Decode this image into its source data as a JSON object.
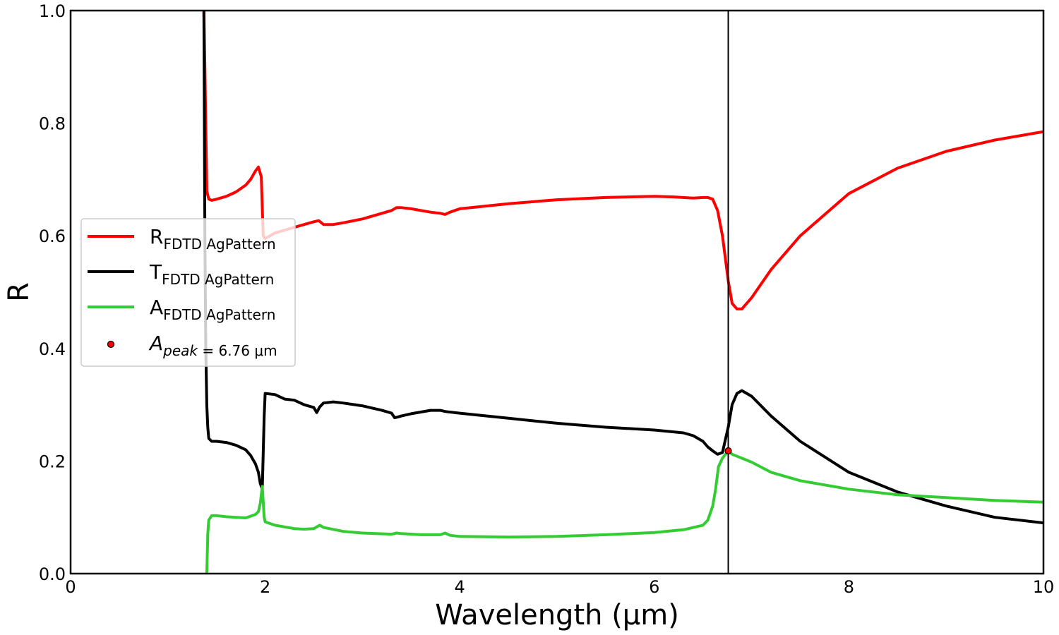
{
  "chart_data": {
    "type": "line",
    "xlabel": "Wavelength (μm)",
    "ylabel": "R",
    "xlim": [
      0,
      10
    ],
    "ylim": [
      0,
      1
    ],
    "xticks": [
      "0",
      "2",
      "4",
      "6",
      "8",
      "10"
    ],
    "yticks": [
      "0.0",
      "0.2",
      "0.4",
      "0.6",
      "0.8",
      "1.0"
    ],
    "grid": false,
    "legend_position": "center-left",
    "vline_x": 6.76,
    "peak_point": {
      "x": 6.76,
      "y": 0.218
    },
    "series": [
      {
        "name": "R",
        "sub": "FDTD AgPattern",
        "color": "#ff0000",
        "x": [
          1.37,
          1.38,
          1.4,
          1.42,
          1.45,
          1.5,
          1.6,
          1.7,
          1.8,
          1.85,
          1.9,
          1.93,
          1.96,
          1.98,
          2.0,
          2.05,
          2.1,
          2.2,
          2.3,
          2.4,
          2.5,
          2.55,
          2.6,
          2.7,
          2.8,
          3.0,
          3.2,
          3.3,
          3.35,
          3.4,
          3.5,
          3.6,
          3.7,
          3.8,
          3.85,
          3.9,
          4.0,
          4.5,
          5.0,
          5.5,
          6.0,
          6.2,
          6.4,
          6.5,
          6.55,
          6.6,
          6.65,
          6.7,
          6.76,
          6.8,
          6.85,
          6.9,
          7.0,
          7.2,
          7.5,
          8.0,
          8.5,
          9.0,
          9.5,
          10.0
        ],
        "y": [
          1.0,
          0.9,
          0.68,
          0.665,
          0.663,
          0.665,
          0.67,
          0.678,
          0.69,
          0.7,
          0.715,
          0.722,
          0.705,
          0.6,
          0.595,
          0.6,
          0.605,
          0.61,
          0.615,
          0.62,
          0.625,
          0.627,
          0.62,
          0.62,
          0.623,
          0.63,
          0.64,
          0.645,
          0.65,
          0.65,
          0.648,
          0.645,
          0.642,
          0.64,
          0.638,
          0.642,
          0.648,
          0.657,
          0.664,
          0.668,
          0.67,
          0.669,
          0.667,
          0.668,
          0.668,
          0.665,
          0.645,
          0.6,
          0.52,
          0.48,
          0.47,
          0.47,
          0.49,
          0.54,
          0.6,
          0.675,
          0.72,
          0.75,
          0.77,
          0.785
        ]
      },
      {
        "name": "T",
        "sub": "FDTD AgPattern",
        "color": "#000000",
        "x": [
          1.37,
          1.38,
          1.39,
          1.4,
          1.41,
          1.42,
          1.45,
          1.5,
          1.6,
          1.7,
          1.8,
          1.85,
          1.9,
          1.93,
          1.95,
          1.97,
          1.99,
          2.0,
          2.1,
          2.2,
          2.3,
          2.4,
          2.5,
          2.53,
          2.56,
          2.6,
          2.7,
          2.8,
          3.0,
          3.2,
          3.3,
          3.33,
          3.36,
          3.4,
          3.5,
          3.6,
          3.7,
          3.8,
          3.85,
          4.0,
          4.5,
          5.0,
          5.5,
          6.0,
          6.3,
          6.4,
          6.5,
          6.55,
          6.6,
          6.65,
          6.7,
          6.76,
          6.8,
          6.85,
          6.9,
          7.0,
          7.2,
          7.5,
          8.0,
          8.5,
          9.0,
          9.5,
          10.0
        ],
        "y": [
          1.0,
          0.6,
          0.4,
          0.3,
          0.26,
          0.24,
          0.235,
          0.235,
          0.233,
          0.228,
          0.22,
          0.21,
          0.195,
          0.18,
          0.16,
          0.15,
          0.28,
          0.32,
          0.318,
          0.31,
          0.308,
          0.3,
          0.295,
          0.286,
          0.296,
          0.303,
          0.305,
          0.303,
          0.298,
          0.29,
          0.285,
          0.277,
          0.278,
          0.28,
          0.284,
          0.287,
          0.29,
          0.29,
          0.288,
          0.285,
          0.276,
          0.267,
          0.26,
          0.255,
          0.25,
          0.245,
          0.235,
          0.225,
          0.218,
          0.212,
          0.215,
          0.26,
          0.3,
          0.32,
          0.325,
          0.315,
          0.28,
          0.235,
          0.18,
          0.145,
          0.12,
          0.1,
          0.09
        ]
      },
      {
        "name": "A",
        "sub": "FDTD AgPattern",
        "color": "#33cc33",
        "x": [
          1.4,
          1.41,
          1.42,
          1.45,
          1.5,
          1.6,
          1.7,
          1.8,
          1.85,
          1.9,
          1.93,
          1.95,
          1.97,
          1.99,
          2.0,
          2.1,
          2.2,
          2.3,
          2.4,
          2.5,
          2.53,
          2.56,
          2.6,
          2.8,
          3.0,
          3.3,
          3.35,
          3.4,
          3.6,
          3.8,
          3.85,
          3.9,
          4.0,
          4.5,
          5.0,
          5.5,
          6.0,
          6.3,
          6.5,
          6.55,
          6.6,
          6.63,
          6.66,
          6.7,
          6.76,
          6.8,
          7.0,
          7.2,
          7.5,
          8.0,
          8.5,
          9.0,
          9.5,
          10.0
        ],
        "y": [
          0.0,
          0.07,
          0.095,
          0.103,
          0.103,
          0.101,
          0.1,
          0.099,
          0.102,
          0.105,
          0.11,
          0.125,
          0.155,
          0.1,
          0.092,
          0.086,
          0.083,
          0.08,
          0.079,
          0.08,
          0.083,
          0.086,
          0.082,
          0.075,
          0.072,
          0.07,
          0.072,
          0.071,
          0.069,
          0.069,
          0.072,
          0.068,
          0.066,
          0.065,
          0.066,
          0.069,
          0.073,
          0.078,
          0.086,
          0.095,
          0.12,
          0.15,
          0.19,
          0.205,
          0.218,
          0.212,
          0.198,
          0.18,
          0.165,
          0.15,
          0.14,
          0.135,
          0.13,
          0.127
        ]
      }
    ],
    "peak_legend": {
      "prefix": "A",
      "sub": "peak",
      "suffix": " = 6.76 μm"
    }
  }
}
